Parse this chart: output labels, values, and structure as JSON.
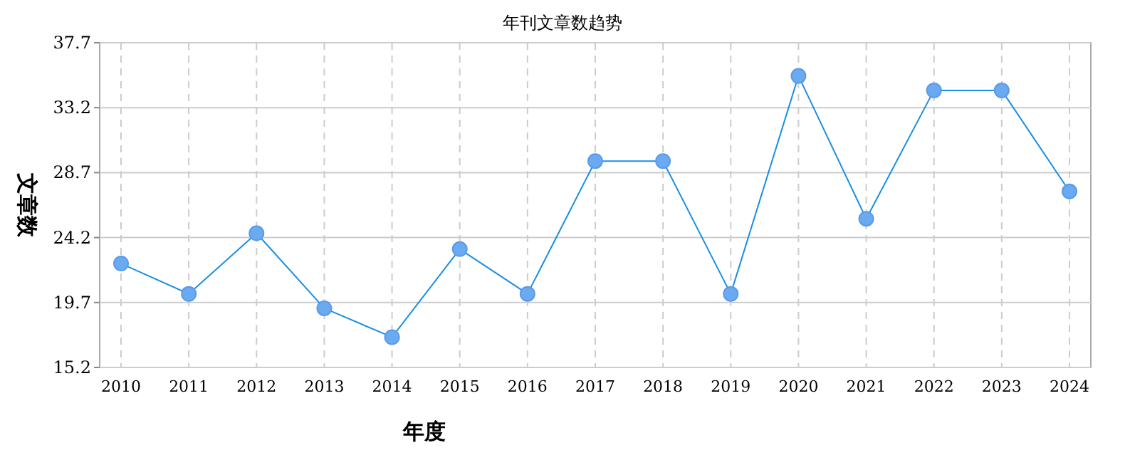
{
  "chart_data": {
    "type": "line",
    "title": "年刊文章数趋势",
    "xlabel": "年度",
    "ylabel": "文章数",
    "categories": [
      "2010",
      "2011",
      "2012",
      "2013",
      "2014",
      "2015",
      "2016",
      "2017",
      "2018",
      "2019",
      "2020",
      "2021",
      "2022",
      "2023",
      "2024"
    ],
    "series": [
      {
        "color": "#1a8fe3",
        "values": [
          22.4,
          20.3,
          24.5,
          19.3,
          17.3,
          23.4,
          20.3,
          29.5,
          29.5,
          20.3,
          35.4,
          25.5,
          34.4,
          34.4,
          27.4
        ]
      }
    ],
    "ylim": [
      15.2,
      37.7
    ],
    "yticks": [
      15.2,
      19.7,
      24.2,
      28.7,
      33.2,
      37.7
    ],
    "grid": true,
    "marker": "circle",
    "line_style": "solid"
  }
}
